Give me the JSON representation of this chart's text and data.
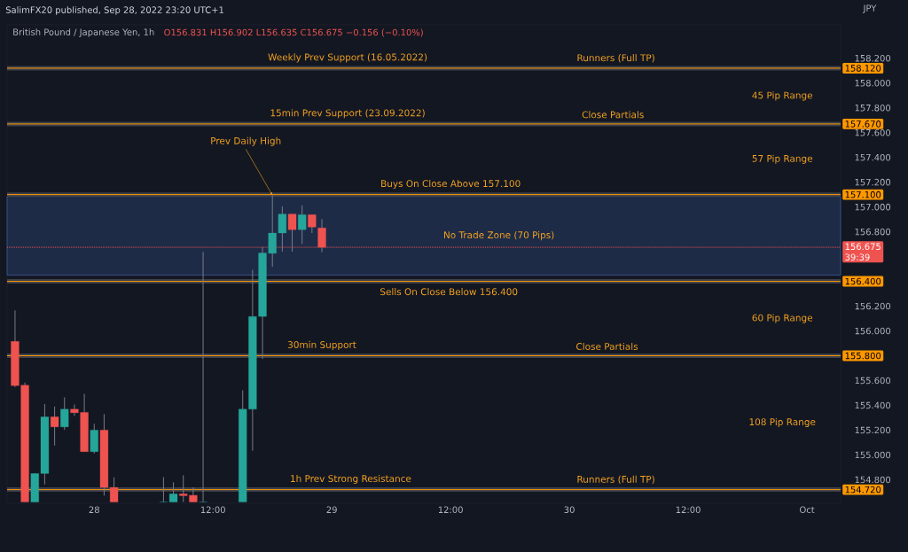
{
  "chart_data": {
    "type": "candlestick",
    "title": "SalimFX20 published, Sep 28, 2022 23:20 UTC+1",
    "subtitle": "British Pound / Japanese Yen, 1h",
    "ylabel": "JPY",
    "x": [
      "2022-09-27T16:00",
      "2022-09-27T17:00",
      "2022-09-27T18:00",
      "2022-09-27T19:00",
      "2022-09-27T20:00",
      "2022-09-27T21:00",
      "2022-09-27T22:00",
      "2022-09-27T23:00",
      "2022-09-28T00:00",
      "2022-09-28T01:00",
      "2022-09-28T02:00",
      "2022-09-28T07:00",
      "2022-09-28T08:00",
      "2022-09-28T09:00",
      "2022-09-28T10:00",
      "2022-09-28T11:00",
      "2022-09-28T15:00",
      "2022-09-28T16:00",
      "2022-09-28T17:00",
      "2022-09-28T18:00",
      "2022-09-28T19:00",
      "2022-09-28T20:00",
      "2022-09-28T21:00",
      "2022-09-28T22:00",
      "2022-09-28T23:00"
    ],
    "ohlc": [
      [
        155.916,
        156.166,
        155.548,
        155.559
      ],
      [
        155.562,
        155.584,
        154.62,
        154.62
      ],
      [
        154.62,
        154.85,
        154.62,
        154.85
      ],
      [
        154.85,
        155.41,
        154.762,
        155.307
      ],
      [
        155.307,
        155.39,
        155.076,
        155.226
      ],
      [
        155.226,
        155.464,
        155.202,
        155.369
      ],
      [
        155.369,
        155.407,
        155.314,
        155.34
      ],
      [
        155.343,
        155.493,
        155.026,
        155.026
      ],
      [
        155.026,
        155.252,
        155.012,
        155.2
      ],
      [
        155.2,
        155.329,
        154.671,
        154.738
      ],
      [
        154.738,
        154.819,
        154.62,
        154.62
      ],
      [
        154.62,
        154.821,
        154.62,
        154.62
      ],
      [
        154.62,
        154.779,
        154.62,
        154.686
      ],
      [
        154.686,
        154.836,
        154.62,
        154.671
      ],
      [
        154.674,
        154.738,
        154.62,
        154.62
      ],
      [
        154.62,
        156.638,
        154.62,
        154.62
      ],
      [
        154.62,
        155.521,
        154.62,
        155.369
      ],
      [
        155.369,
        156.493,
        155.034,
        156.117
      ],
      [
        156.117,
        156.679,
        155.774,
        156.629
      ],
      [
        156.626,
        157.095,
        156.517,
        156.79
      ],
      [
        156.79,
        157.005,
        156.64,
        156.943
      ],
      [
        156.943,
        156.943,
        156.64,
        156.817
      ],
      [
        156.817,
        157.014,
        156.702,
        156.938
      ],
      [
        156.938,
        156.938,
        156.79,
        156.838
      ],
      [
        156.831,
        156.902,
        156.635,
        156.675
      ]
    ],
    "colors": [
      "#ef5350",
      "#ef5350",
      "#26a69a",
      "#26a69a",
      "#ef5350",
      "#26a69a",
      "#ef5350",
      "#ef5350",
      "#26a69a",
      "#ef5350",
      "#ef5350",
      "#26a69a",
      "#26a69a",
      "#ef5350",
      "#ef5350",
      "#26a69a",
      "#26a69a",
      "#26a69a",
      "#26a69a",
      "#26a69a",
      "#26a69a",
      "#ef5350",
      "#26a69a",
      "#ef5350",
      "#ef5350"
    ],
    "xlim": [
      "2022-09-27T15:12",
      "2022-10-01T03:24"
    ],
    "ylim": [
      154.61,
      158.47
    ],
    "xticks": [
      {
        "value": "2022-09-28",
        "label": "28"
      },
      {
        "value": "2022-09-28T12:00",
        "label": "12:00"
      },
      {
        "value": "2022-09-29",
        "label": "29"
      },
      {
        "value": "2022-09-29T12:00",
        "label": "12:00"
      },
      {
        "value": "2022-09-30",
        "label": "30"
      },
      {
        "value": "2022-09-30T12:00",
        "label": "12:00"
      },
      {
        "value": "2022-10-01",
        "label": "Oct"
      }
    ],
    "yticks": [
      {
        "value": 154.8,
        "label": "154.800"
      },
      {
        "value": 155.0,
        "label": "155.000"
      },
      {
        "value": 155.2,
        "label": "155.200"
      },
      {
        "value": 155.4,
        "label": "155.400"
      },
      {
        "value": 155.6,
        "label": "155.600"
      },
      {
        "value": 155.8,
        "label": null
      },
      {
        "value": 156.0,
        "label": "156.000"
      },
      {
        "value": 156.2,
        "label": "156.200"
      },
      {
        "value": 156.4,
        "label": null
      },
      {
        "value": 156.8,
        "label": "156.800"
      },
      {
        "value": 157.0,
        "label": "157.000"
      },
      {
        "value": 157.2,
        "label": "157.200"
      },
      {
        "value": 157.4,
        "label": "157.400"
      },
      {
        "value": 157.6,
        "label": "157.600"
      },
      {
        "value": 157.8,
        "label": "157.800"
      },
      {
        "value": 158.0,
        "label": "158.000"
      },
      {
        "value": 158.2,
        "label": "158.200"
      }
    ],
    "ref_lines": [
      {
        "axis": "y",
        "value": 158.12,
        "label": "158.120",
        "color": "#ff9800",
        "line_style": "solid"
      },
      {
        "axis": "y",
        "value": 157.67,
        "label": "157.670",
        "color": "#ff9800",
        "line_style": "solid"
      },
      {
        "axis": "y",
        "value": 157.1,
        "label": "157.100",
        "color": "#ff9800",
        "line_style": "solid"
      },
      {
        "axis": "y",
        "value": 156.4,
        "label": "156.400",
        "color": "#ff9800",
        "line_style": "solid"
      },
      {
        "axis": "y",
        "value": 155.8,
        "label": "155.800",
        "color": "#ff9800",
        "line_style": "solid"
      },
      {
        "axis": "y",
        "value": 154.72,
        "label": "154.720",
        "color": "#ff9800",
        "line_style": "solid"
      },
      {
        "axis": "y",
        "value": 156.675,
        "label": "156.675",
        "color": "#ef5350",
        "line_style": "dotted"
      }
    ],
    "bands": [
      {
        "axis": "y",
        "from": 156.45,
        "to": 157.086,
        "label": "No Trade Zone (70 Pips)",
        "color": "#1e2b47"
      }
    ],
    "annotations": [
      "O156.831 H156.902 L156.635 C156.675 −0.156 (−0.10%)",
      "39:39",
      "45 Pip Range",
      "57 Pip Range",
      "60 Pip Range",
      "108 Pip Range",
      "Sells On Close Below 156.400",
      {
        "text": "Weekly Prev Support (16.05.2022)",
        "x": "2022-09-29T01:36",
        "y": 158.12
      },
      {
        "text": "Runners (Full TP)",
        "x": "2022-09-30T04:42",
        "y": 158.12
      },
      {
        "text": "15min Prev Support (23.09.2022)",
        "x": "2022-09-29T01:36",
        "y": 157.67
      },
      {
        "text": "Close Partials",
        "x": "2022-09-30T04:24",
        "y": 157.67
      },
      {
        "text": "Prev Daily High",
        "x": "2022-09-28T18:00",
        "y": 157.095
      },
      {
        "text": "Buys On Close Above 157.100",
        "x": "2022-09-29T12:00",
        "y": 157.1
      },
      {
        "text": "30min Support",
        "x": "2022-09-28T23:00",
        "y": 155.8
      },
      {
        "text": "Close Partials",
        "x": "2022-09-30T03:48",
        "y": 155.8
      },
      {
        "text": "1h Prev Strong Resistance",
        "x": "2022-09-29T01:54",
        "y": 154.72
      },
      {
        "text": "Runners (Full TP)",
        "x": "2022-09-30T04:42",
        "y": 154.72
      }
    ],
    "grid": false
  }
}
